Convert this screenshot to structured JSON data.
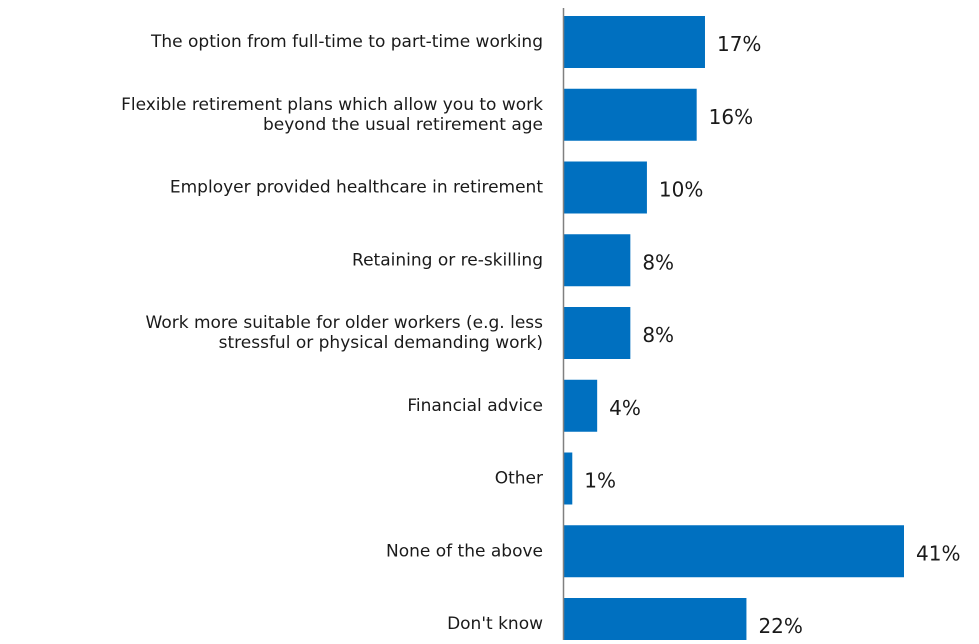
{
  "chart_data": {
    "type": "bar",
    "orientation": "horizontal",
    "categories": [
      "The option from full-time to part-time working",
      "Flexible retirement plans which allow you to work beyond the usual retirement age",
      "Employer provided healthcare in retirement",
      "Retaining or re-skilling",
      "Work more suitable for older workers (e.g. less stressful or physical demanding work)",
      "Financial advice",
      "Other",
      "None of the above",
      "Don't know"
    ],
    "category_lines": [
      [
        "The option from full-time to part-time working"
      ],
      [
        "Flexible retirement plans which allow you to work",
        "beyond the usual retirement age"
      ],
      [
        "Employer provided healthcare in retirement"
      ],
      [
        "Retaining or re-skilling"
      ],
      [
        "Work more suitable for older workers (e.g. less",
        "stressful or physical demanding work)"
      ],
      [
        "Financial advice"
      ],
      [
        "Other"
      ],
      [
        "None of the above"
      ],
      [
        "Don't know"
      ]
    ],
    "values": [
      17,
      16,
      10,
      8,
      8,
      4,
      1,
      41,
      22
    ],
    "value_labels": [
      "17%",
      "16%",
      "10%",
      "8%",
      "8%",
      "4%",
      "1%",
      "41%",
      "22%"
    ],
    "unit": "%",
    "xlim": [
      0,
      41
    ],
    "grid": false,
    "legend": "none",
    "colors": {
      "bar": "#0070c0",
      "axis": "#808080",
      "text": "#1a1a1a"
    }
  }
}
